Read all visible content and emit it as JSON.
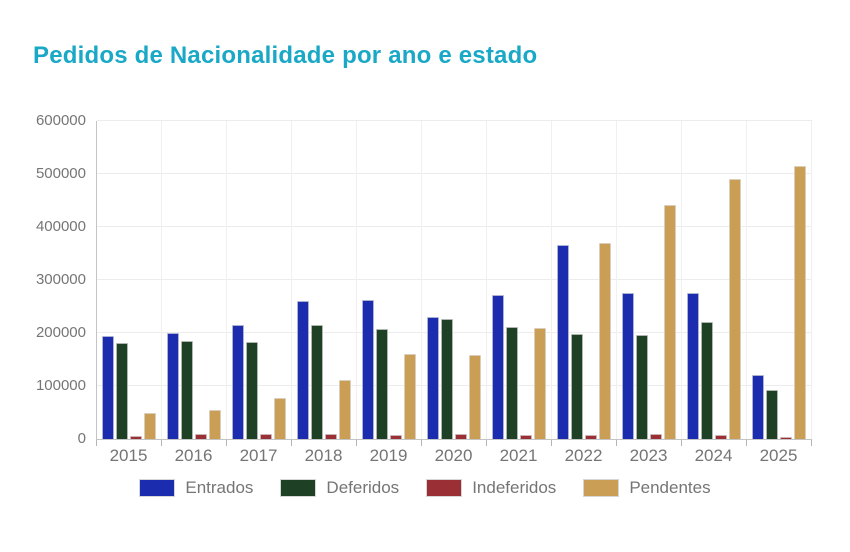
{
  "title": "Pedidos de Nacionalidade por ano e estado",
  "colors": {
    "title": "#19a8c6",
    "axis_text": "#757575",
    "axis_line": "#c4c4c4",
    "gridline": "#ececec"
  },
  "chart_data": {
    "type": "bar",
    "title": "Pedidos de Nacionalidade por ano e estado",
    "categories": [
      "2015",
      "2016",
      "2017",
      "2018",
      "2019",
      "2020",
      "2021",
      "2022",
      "2023",
      "2024",
      "2025"
    ],
    "series": [
      {
        "name": "Entrados",
        "color": "#1c2cae",
        "values": [
          195000,
          200000,
          215000,
          260000,
          263000,
          230000,
          272000,
          367000,
          275000,
          276000,
          121000
        ]
      },
      {
        "name": "Deferidos",
        "color": "#1e4024",
        "values": [
          181000,
          185000,
          183000,
          216000,
          207000,
          226000,
          212000,
          199000,
          196000,
          220000,
          93000
        ]
      },
      {
        "name": "Indeferidos",
        "color": "#9a2f36",
        "values": [
          5000,
          9000,
          9000,
          9000,
          7000,
          9000,
          8000,
          8000,
          9000,
          8000,
          4000
        ]
      },
      {
        "name": "Pendentes",
        "color": "#cb9e55",
        "values": [
          49000,
          55000,
          77000,
          112000,
          161000,
          158000,
          209000,
          370000,
          441000,
          490000,
          515000
        ]
      }
    ],
    "xlabel": "",
    "ylabel": "",
    "ylim": [
      0,
      600000
    ],
    "y_ticks": [
      0,
      100000,
      200000,
      300000,
      400000,
      500000,
      600000
    ],
    "grid": true,
    "legend_position": "bottom"
  }
}
